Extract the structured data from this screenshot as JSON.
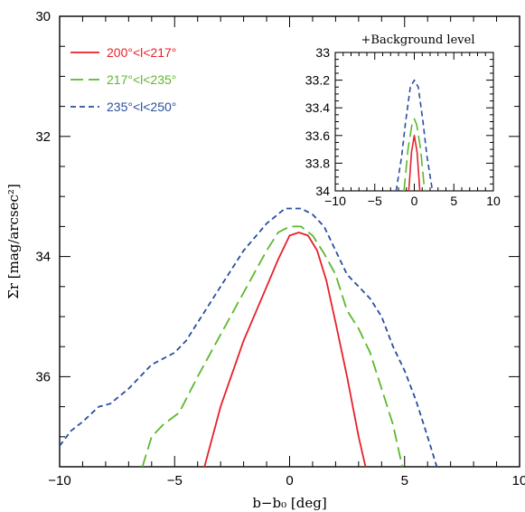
{
  "chart_data": [
    {
      "type": "line",
      "xlabel": "b−b₀ [deg]",
      "ylabel": "Σr [mag/arcsec²]",
      "xlim": [
        -10,
        10
      ],
      "ylim": [
        37.5,
        30
      ],
      "y_inverted": true,
      "x_ticks": [
        -10,
        -5,
        0,
        5,
        10
      ],
      "x_tick_labels": [
        "−10",
        "−5",
        "0",
        "5",
        "10"
      ],
      "y_ticks": [
        30,
        32,
        34,
        36
      ],
      "y_tick_labels": [
        "30",
        "32",
        "34",
        "36"
      ],
      "legend": {
        "position": "top-left"
      },
      "grid": false,
      "series": [
        {
          "name": "200°<l<217°",
          "color": "#e8202a",
          "dash": "solid",
          "x": [
            -3.7,
            -3.0,
            -2.0,
            -1.0,
            -0.5,
            0.0,
            0.4,
            0.8,
            1.2,
            1.6,
            2.0,
            2.5,
            3.0,
            3.3
          ],
          "y": [
            37.5,
            36.5,
            35.4,
            34.5,
            34.05,
            33.65,
            33.6,
            33.65,
            33.9,
            34.4,
            35.1,
            36.0,
            37.0,
            37.5
          ]
        },
        {
          "name": "217°<l<235°",
          "color": "#5cb82e",
          "dash": "long",
          "x": [
            -6.4,
            -6.0,
            -5.5,
            -4.8,
            -4.0,
            -3.0,
            -2.0,
            -1.0,
            -0.5,
            0.0,
            0.5,
            1.0,
            1.5,
            2.0,
            2.5,
            3.0,
            3.5,
            4.0,
            4.5,
            4.9
          ],
          "y": [
            37.5,
            37.0,
            36.8,
            36.6,
            36.0,
            35.3,
            34.6,
            33.9,
            33.6,
            33.5,
            33.5,
            33.65,
            33.95,
            34.3,
            34.9,
            35.2,
            35.6,
            36.2,
            36.8,
            37.5
          ]
        },
        {
          "name": "235°<l<250°",
          "color": "#2a4ea0",
          "dash": "short",
          "x": [
            -10.0,
            -9.5,
            -9.0,
            -8.3,
            -7.8,
            -7.0,
            -6.0,
            -5.0,
            -4.5,
            -4.0,
            -3.0,
            -2.0,
            -1.0,
            -0.2,
            0.5,
            1.0,
            1.5,
            2.0,
            2.5,
            3.0,
            3.5,
            4.0,
            4.5,
            5.0,
            5.5,
            6.0,
            6.4
          ],
          "y": [
            37.15,
            36.9,
            36.75,
            36.5,
            36.45,
            36.2,
            35.8,
            35.6,
            35.4,
            35.1,
            34.5,
            33.9,
            33.45,
            33.2,
            33.2,
            33.3,
            33.5,
            33.9,
            34.3,
            34.5,
            34.7,
            35.0,
            35.5,
            35.9,
            36.4,
            37.0,
            37.5
          ]
        }
      ]
    },
    {
      "type": "line",
      "title": "+Background level",
      "xlim": [
        -10,
        10
      ],
      "ylim": [
        34,
        33
      ],
      "y_inverted": true,
      "x_ticks": [
        -10,
        -5,
        0,
        5,
        10
      ],
      "x_tick_labels": [
        "−10",
        "−5",
        "0",
        "5",
        "10"
      ],
      "y_ticks": [
        33,
        33.2,
        33.4,
        33.6,
        33.8,
        34
      ],
      "y_tick_labels": [
        "33",
        "33.2",
        "33.4",
        "33.6",
        "33.8",
        "34"
      ],
      "grid": false,
      "series": [
        {
          "color": "#e8202a",
          "dash": "solid",
          "x": [
            -0.7,
            -0.35,
            0.0,
            0.35,
            0.7
          ],
          "y": [
            34.0,
            33.72,
            33.6,
            33.72,
            34.0
          ]
        },
        {
          "color": "#5cb82e",
          "dash": "long",
          "x": [
            -1.3,
            -0.8,
            -0.3,
            0.0,
            0.3,
            0.8,
            1.3
          ],
          "y": [
            34.0,
            33.7,
            33.52,
            33.48,
            33.52,
            33.7,
            34.0
          ]
        },
        {
          "color": "#2a4ea0",
          "dash": "short",
          "x": [
            -2.3,
            -1.6,
            -1.1,
            -0.5,
            0.0,
            0.5,
            1.1,
            1.6,
            2.3
          ],
          "y": [
            34.0,
            33.75,
            33.5,
            33.25,
            33.2,
            33.25,
            33.5,
            33.75,
            34.0
          ]
        }
      ]
    }
  ]
}
